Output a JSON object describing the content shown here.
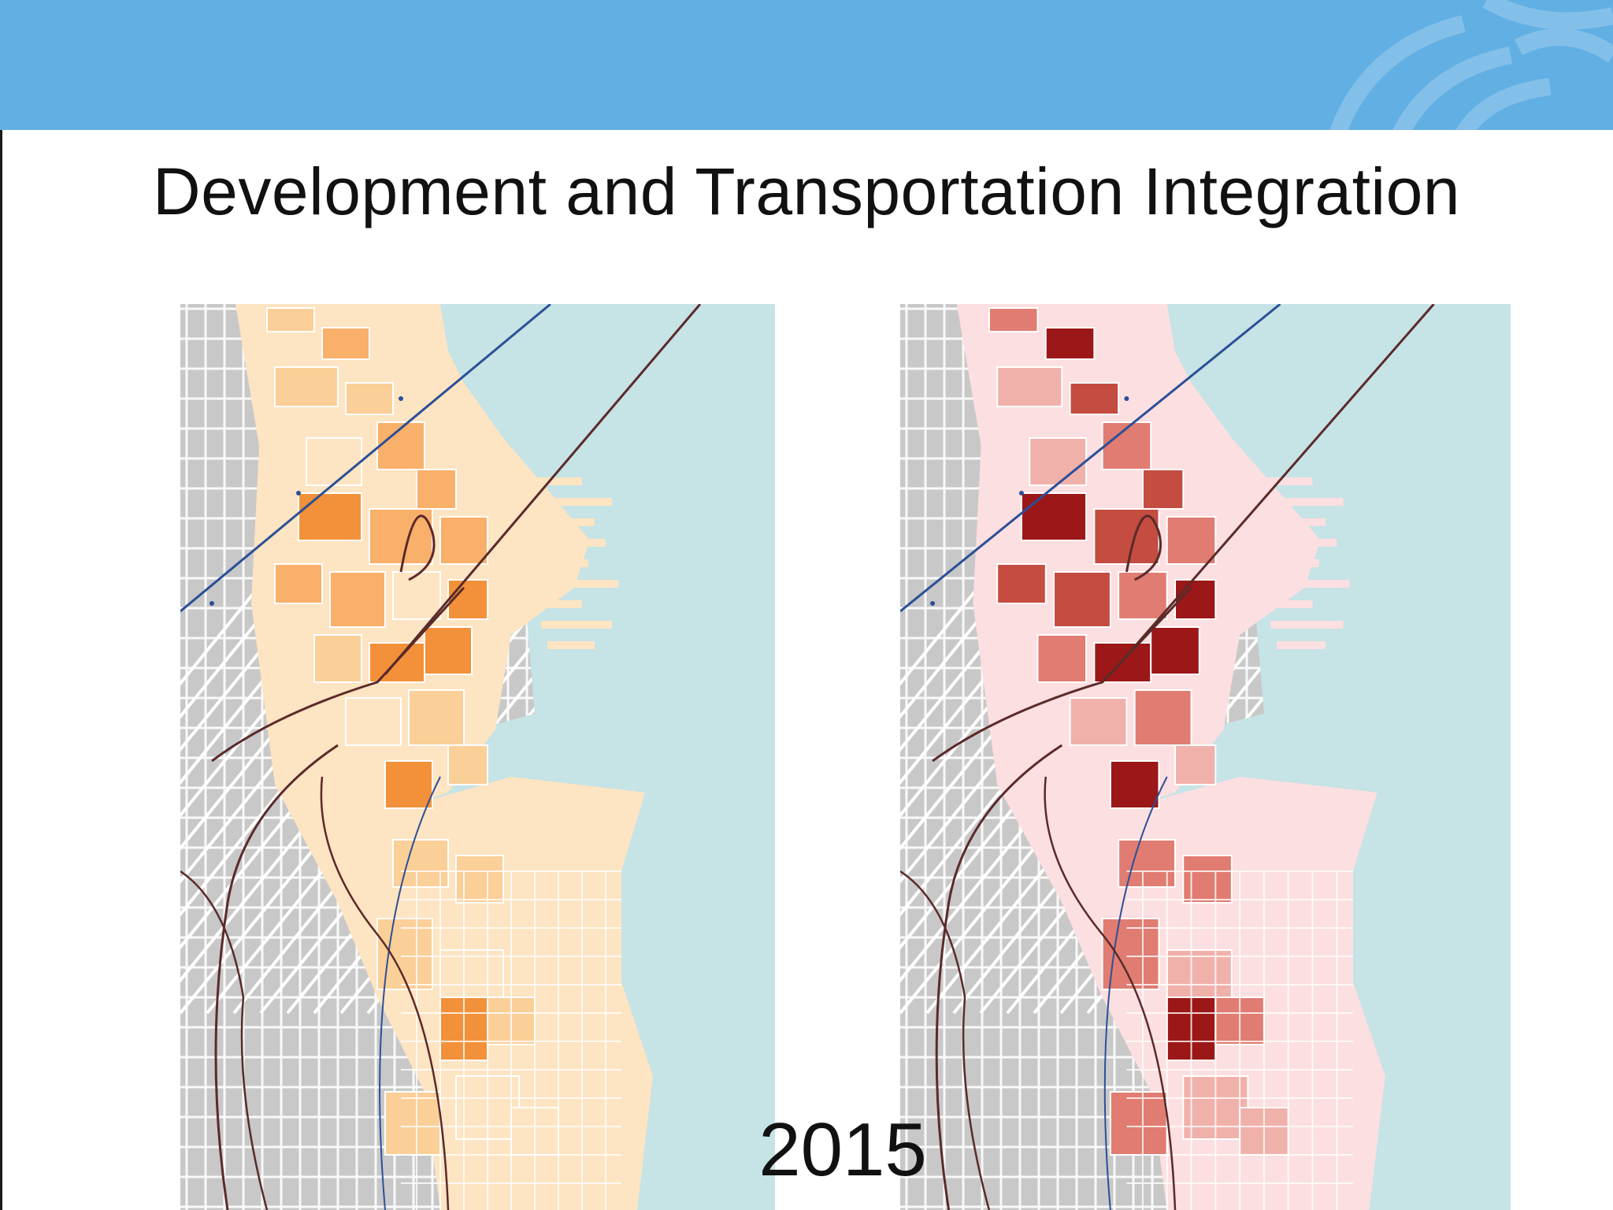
{
  "slide": {
    "title": "Development and Transportation Integration",
    "year_label": "2015"
  },
  "colors": {
    "header": "#62b0e3",
    "water": "#c6e3e6",
    "land_gray": "#c8c8c9",
    "street": "#ffffff",
    "rail_dark": "#5a2a2a",
    "transit_blue": "#2c4f97"
  },
  "maps": [
    {
      "name": "left-map",
      "ramp": [
        "#fde4c2",
        "#fbcf98",
        "#f8b06a",
        "#f29139",
        "#ea7414"
      ],
      "zone_base": "#fde4c2"
    },
    {
      "name": "right-map",
      "ramp": [
        "#fbdbdb",
        "#f1b1ab",
        "#e07c71",
        "#c44c40",
        "#9c1717"
      ],
      "zone_base": "#fcdfe0"
    }
  ],
  "icons": {
    "logo": "header-logo-icon"
  }
}
